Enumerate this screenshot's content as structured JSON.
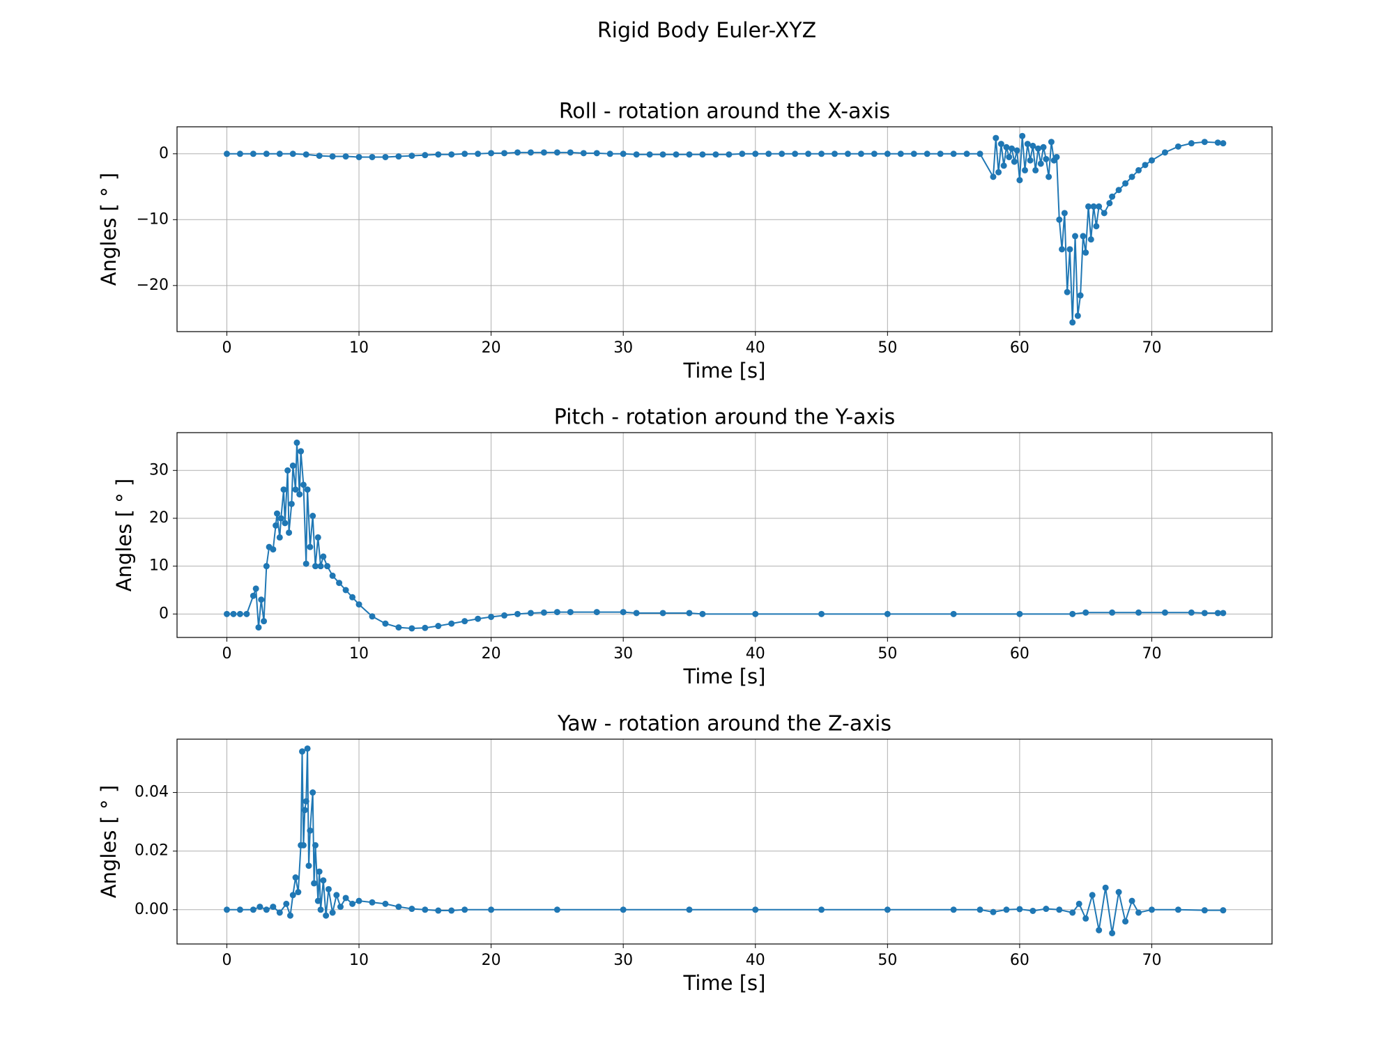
{
  "title": "Rigid Body Euler-XYZ",
  "chart_data": [
    {
      "type": "line",
      "title": "Roll - rotation around the X-axis",
      "xlabel": "Time [s]",
      "ylabel": "Angles [ ° ]",
      "color": "#1f77b4",
      "grid": true,
      "xlim": [
        -3.77,
        79.1
      ],
      "xticks": [
        0,
        10,
        20,
        30,
        40,
        50,
        60,
        70
      ],
      "ylim": [
        -27.0,
        4.1
      ],
      "yticks": [
        {
          "value": -20,
          "label": "−20"
        },
        {
          "value": -10,
          "label": "−10"
        },
        0
      ],
      "x": [
        0,
        1,
        2,
        3,
        4,
        5,
        6,
        7,
        8,
        9,
        10,
        11,
        12,
        13,
        14,
        15,
        16,
        17,
        18,
        19,
        20,
        21,
        22,
        23,
        24,
        25,
        26,
        27,
        28,
        29,
        30,
        31,
        32,
        33,
        34,
        35,
        36,
        37,
        38,
        39,
        40,
        41,
        42,
        43,
        44,
        45,
        46,
        47,
        48,
        49,
        50,
        51,
        52,
        53,
        54,
        55,
        56,
        57,
        58,
        58.2,
        58.4,
        58.6,
        58.8,
        59,
        59.2,
        59.4,
        59.6,
        59.8,
        60,
        60.2,
        60.4,
        60.6,
        60.8,
        61,
        61.2,
        61.4,
        61.6,
        61.8,
        62,
        62.2,
        62.4,
        62.6,
        62.8,
        63,
        63.2,
        63.4,
        63.6,
        63.8,
        64,
        64.2,
        64.4,
        64.6,
        64.8,
        65,
        65.2,
        65.4,
        65.6,
        65.8,
        66,
        66.4,
        66.8,
        67,
        67.5,
        68,
        68.5,
        69,
        69.5,
        70,
        71,
        72,
        73,
        74,
        75,
        75.4
      ],
      "values": [
        0,
        0,
        0,
        0,
        0,
        0,
        -0.1,
        -0.3,
        -0.4,
        -0.4,
        -0.5,
        -0.5,
        -0.5,
        -0.4,
        -0.3,
        -0.2,
        -0.1,
        -0.1,
        0,
        0,
        0.1,
        0.1,
        0.2,
        0.2,
        0.2,
        0.2,
        0.2,
        0.1,
        0.1,
        0,
        0,
        -0.1,
        -0.1,
        -0.1,
        -0.1,
        -0.1,
        -0.1,
        -0.1,
        -0.1,
        0,
        0,
        0,
        0,
        0,
        0,
        0,
        0,
        0,
        0,
        0,
        0,
        0,
        0,
        0,
        0,
        0,
        0,
        0,
        -3.5,
        2.4,
        -2.8,
        1.5,
        -1.8,
        1,
        -0.5,
        0.8,
        -1.2,
        0.5,
        -4,
        2.7,
        -2.5,
        1.5,
        -1,
        1.2,
        -2.5,
        0.8,
        -1.5,
        1,
        -0.8,
        -3.5,
        1.8,
        -1,
        -0.5,
        -10,
        -14.5,
        -9,
        -21,
        -14.5,
        -25.6,
        -12.5,
        -24.6,
        -21.5,
        -12.5,
        -15,
        -8,
        -13,
        -8,
        -11,
        -8,
        -9,
        -7.5,
        -6.5,
        -5.5,
        -4.5,
        -3.5,
        -2.5,
        -1.7,
        -1,
        0.2,
        1.1,
        1.6,
        1.8,
        1.7,
        1.6
      ]
    },
    {
      "type": "line",
      "title": "Pitch - rotation around the Y-axis",
      "xlabel": "Time [s]",
      "ylabel": "Angles [ ° ]",
      "color": "#1f77b4",
      "grid": true,
      "xlim": [
        -3.77,
        79.1
      ],
      "xticks": [
        0,
        10,
        20,
        30,
        40,
        50,
        60,
        70
      ],
      "ylim": [
        -4.9,
        37.9
      ],
      "yticks": [
        0,
        10,
        20,
        30
      ],
      "x": [
        0,
        0.5,
        1,
        1.5,
        2,
        2.2,
        2.4,
        2.6,
        2.8,
        3,
        3.2,
        3.5,
        3.7,
        3.8,
        4,
        4.1,
        4.3,
        4.4,
        4.6,
        4.7,
        4.9,
        5,
        5.2,
        5.3,
        5.5,
        5.6,
        5.8,
        6,
        6.1,
        6.3,
        6.5,
        6.7,
        6.9,
        7.1,
        7.3,
        7.6,
        8,
        8.5,
        9,
        9.5,
        10,
        11,
        12,
        13,
        14,
        15,
        16,
        17,
        18,
        19,
        20,
        21,
        22,
        23,
        24,
        25,
        26,
        28,
        30,
        31,
        33,
        35,
        36,
        40,
        45,
        50,
        55,
        60,
        64,
        65,
        67,
        69,
        71,
        73,
        74,
        75,
        75.4
      ],
      "values": [
        0,
        0,
        0,
        0,
        3.8,
        5.3,
        -2.8,
        3,
        -1.5,
        10,
        14,
        13.5,
        18.5,
        21,
        16,
        20,
        26,
        19,
        30,
        17,
        23,
        31,
        26,
        35.8,
        25,
        34,
        27,
        10.5,
        26,
        14,
        20.5,
        10,
        16,
        10,
        12,
        10,
        8,
        6.5,
        5,
        3.5,
        2,
        -0.5,
        -2,
        -2.8,
        -3,
        -2.9,
        -2.5,
        -2,
        -1.5,
        -1,
        -0.6,
        -0.3,
        0,
        0.2,
        0.3,
        0.4,
        0.4,
        0.4,
        0.4,
        0.2,
        0.2,
        0.2,
        0,
        0,
        0,
        0,
        0,
        0,
        0,
        0.3,
        0.3,
        0.3,
        0.3,
        0.3,
        0.2,
        0.2,
        0.2
      ]
    },
    {
      "type": "line",
      "title": "Yaw - rotation around the Z-axis",
      "xlabel": "Time [s]",
      "ylabel": "Angles [ ° ]",
      "color": "#1f77b4",
      "grid": true,
      "xlim": [
        -3.77,
        79.1
      ],
      "xticks": [
        0,
        10,
        20,
        30,
        40,
        50,
        60,
        70
      ],
      "ylim": [
        -0.0117,
        0.0582
      ],
      "yticks": [
        {
          "value": 0,
          "label": "0.00"
        },
        {
          "value": 0.02,
          "label": "0.02"
        },
        {
          "value": 0.04,
          "label": "0.04"
        }
      ],
      "x": [
        0,
        1,
        2,
        2.5,
        3,
        3.5,
        4,
        4.5,
        4.8,
        5,
        5.2,
        5.4,
        5.6,
        5.7,
        5.8,
        5.9,
        6,
        6.1,
        6.2,
        6.3,
        6.5,
        6.6,
        6.7,
        6.9,
        7,
        7.1,
        7.3,
        7.5,
        7.7,
        8,
        8.3,
        8.6,
        9,
        9.5,
        10,
        11,
        12,
        13,
        14,
        15,
        16,
        17,
        18,
        20,
        25,
        30,
        35,
        40,
        45,
        50,
        55,
        57,
        58,
        59,
        60,
        61,
        62,
        63,
        64,
        64.5,
        65,
        65.5,
        66,
        66.5,
        67,
        67.5,
        68,
        68.5,
        69,
        70,
        72,
        74,
        75.4
      ],
      "values": [
        0,
        0,
        0,
        0.001,
        0,
        0.001,
        -0.001,
        0.002,
        -0.002,
        0.005,
        0.011,
        0.006,
        0.022,
        0.054,
        0.022,
        0.034,
        0.037,
        0.055,
        0.015,
        0.027,
        0.04,
        0.009,
        0.022,
        0.003,
        0.013,
        0,
        0.01,
        -0.002,
        0.007,
        -0.001,
        0.005,
        0.001,
        0.004,
        0.002,
        0.003,
        0.0025,
        0.002,
        0.001,
        0.0003,
        0,
        -0.0003,
        -0.0003,
        0,
        0,
        0,
        0,
        0,
        0,
        0,
        0,
        0,
        0,
        -0.0008,
        0,
        0.0002,
        -0.0004,
        0.0003,
        0,
        -0.001,
        0.002,
        -0.003,
        0.005,
        -0.007,
        0.0075,
        -0.008,
        0.006,
        -0.004,
        0.003,
        -0.001,
        0,
        0,
        -0.0002,
        -0.0002
      ]
    }
  ]
}
